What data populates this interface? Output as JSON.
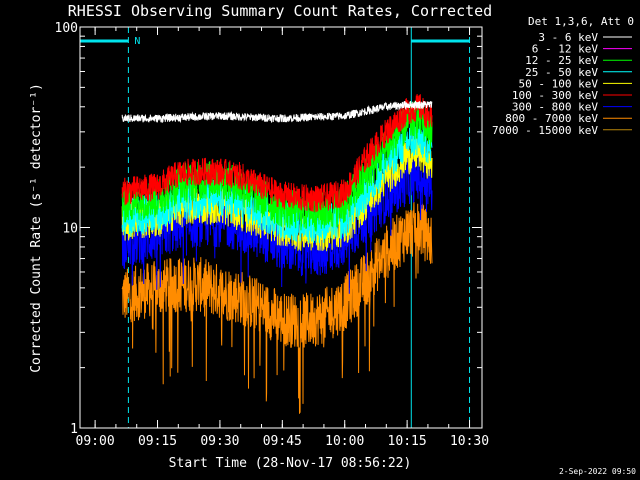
{
  "chart_data": {
    "type": "line",
    "title": "RHESSI Observing Summary Count Rates, Corrected",
    "xlabel": "Start Time (28-Nov-17 08:56:22)",
    "ylabel": "Corrected Count Rate (s⁻¹ detector⁻¹)",
    "y_scale": "log",
    "ylim": [
      1,
      100
    ],
    "xlim": [
      "08:56:22",
      "10:33:00"
    ],
    "x_ticks": [
      "09:00",
      "09:15",
      "09:30",
      "09:45",
      "10:00",
      "10:15",
      "10:30"
    ],
    "y_ticks": [
      "1",
      "10",
      "100"
    ],
    "legend_title": "Det 1,3,6, Att 0",
    "legend_position": "top-right",
    "timestamp": "2-Sep-2022 09:50",
    "night_marker_label": "N",
    "annotations": {
      "night_intervals": [
        [
          "08:56:22",
          "09:08:00"
        ],
        [
          "10:16:00",
          "10:30:00"
        ]
      ],
      "solid_vlines": [
        "08:56:22",
        "10:16:00"
      ],
      "dashed_vlines": [
        "09:08:00",
        "10:30:00"
      ],
      "data_start": "09:06:30",
      "data_end": "10:21:00"
    },
    "series": [
      {
        "name": "3 - 6 keV",
        "color": "#ffffff",
        "points": [
          [
            "09:06",
            35
          ],
          [
            "09:15",
            35
          ],
          [
            "09:30",
            36
          ],
          [
            "09:45",
            35
          ],
          [
            "10:00",
            36
          ],
          [
            "10:05",
            38
          ],
          [
            "10:10",
            40
          ],
          [
            "10:15",
            41
          ],
          [
            "10:21",
            41
          ]
        ]
      },
      {
        "name": "6 - 12 keV",
        "color": "#ff00ff",
        "points": []
      },
      {
        "name": "12 - 25 keV",
        "color": "#00ff00",
        "points": [
          [
            "09:06",
            13
          ],
          [
            "09:10",
            13.5
          ],
          [
            "09:15",
            14
          ],
          [
            "09:20",
            16.5
          ],
          [
            "09:25",
            17
          ],
          [
            "09:30",
            17.5
          ],
          [
            "09:35",
            16
          ],
          [
            "09:40",
            14
          ],
          [
            "09:45",
            12.5
          ],
          [
            "09:50",
            12
          ],
          [
            "09:55",
            12
          ],
          [
            "10:00",
            13
          ],
          [
            "10:05",
            18
          ],
          [
            "10:10",
            25
          ],
          [
            "10:15",
            33
          ],
          [
            "10:18",
            35
          ],
          [
            "10:21",
            30
          ]
        ]
      },
      {
        "name": "25 - 50 keV",
        "color": "#00ffff",
        "points": [
          [
            "09:06",
            11
          ],
          [
            "09:10",
            11.5
          ],
          [
            "09:15",
            12
          ],
          [
            "09:20",
            13.5
          ],
          [
            "09:25",
            14
          ],
          [
            "09:30",
            14
          ],
          [
            "09:35",
            13
          ],
          [
            "09:40",
            12
          ],
          [
            "09:45",
            11
          ],
          [
            "09:50",
            10.5
          ],
          [
            "09:55",
            10.5
          ],
          [
            "10:00",
            11
          ],
          [
            "10:05",
            15
          ],
          [
            "10:10",
            21
          ],
          [
            "10:15",
            27
          ],
          [
            "10:18",
            28
          ],
          [
            "10:21",
            25
          ]
        ]
      },
      {
        "name": "50 - 100 keV",
        "color": "#ffff00",
        "points": [
          [
            "09:06",
            10.5
          ],
          [
            "09:10",
            11
          ],
          [
            "09:15",
            11
          ],
          [
            "09:20",
            12.5
          ],
          [
            "09:25",
            13
          ],
          [
            "09:30",
            13
          ],
          [
            "09:35",
            12
          ],
          [
            "09:40",
            11
          ],
          [
            "09:45",
            10
          ],
          [
            "09:50",
            9.5
          ],
          [
            "09:55",
            9.5
          ],
          [
            "10:00",
            10
          ],
          [
            "10:05",
            13.5
          ],
          [
            "10:10",
            18
          ],
          [
            "10:15",
            23
          ],
          [
            "10:18",
            24
          ],
          [
            "10:21",
            21
          ]
        ]
      },
      {
        "name": "100 - 300 keV",
        "color": "#ff0000",
        "points": [
          [
            "09:06",
            15
          ],
          [
            "09:10",
            15.5
          ],
          [
            "09:15",
            16
          ],
          [
            "09:20",
            18.5
          ],
          [
            "09:25",
            19
          ],
          [
            "09:30",
            19
          ],
          [
            "09:35",
            18
          ],
          [
            "09:40",
            16
          ],
          [
            "09:45",
            14.5
          ],
          [
            "09:50",
            14
          ],
          [
            "09:55",
            14
          ],
          [
            "10:00",
            15
          ],
          [
            "10:05",
            22
          ],
          [
            "10:10",
            30
          ],
          [
            "10:15",
            38
          ],
          [
            "10:18",
            40
          ],
          [
            "10:21",
            34
          ]
        ]
      },
      {
        "name": "300 - 800 keV",
        "color": "#0000ff",
        "points": [
          [
            "09:06",
            8
          ],
          [
            "09:10",
            8.5
          ],
          [
            "09:15",
            9
          ],
          [
            "09:20",
            10
          ],
          [
            "09:25",
            10.5
          ],
          [
            "09:30",
            10.5
          ],
          [
            "09:35",
            10
          ],
          [
            "09:40",
            9
          ],
          [
            "09:45",
            8
          ],
          [
            "09:50",
            7.5
          ],
          [
            "09:55",
            7.5
          ],
          [
            "10:00",
            8.5
          ],
          [
            "10:05",
            11
          ],
          [
            "10:10",
            14
          ],
          [
            "10:15",
            17
          ],
          [
            "10:18",
            18
          ],
          [
            "10:21",
            16
          ]
        ]
      },
      {
        "name": "800 - 7000 keV",
        "color": "#ff8c00",
        "points": [
          [
            "09:06",
            4.5
          ],
          [
            "09:10",
            4.7
          ],
          [
            "09:15",
            5
          ],
          [
            "09:20",
            5.2
          ],
          [
            "09:25",
            5.2
          ],
          [
            "09:30",
            4.8
          ],
          [
            "09:35",
            4.5
          ],
          [
            "09:40",
            4
          ],
          [
            "09:45",
            3.5
          ],
          [
            "09:50",
            3.4
          ],
          [
            "09:55",
            3.6
          ],
          [
            "10:00",
            4.2
          ],
          [
            "10:05",
            5.5
          ],
          [
            "10:10",
            7.5
          ],
          [
            "10:15",
            9.5
          ],
          [
            "10:18",
            10
          ],
          [
            "10:21",
            8.5
          ]
        ]
      },
      {
        "name": "7000 - 15000 keV",
        "color": "#b8860b",
        "points": []
      }
    ]
  }
}
